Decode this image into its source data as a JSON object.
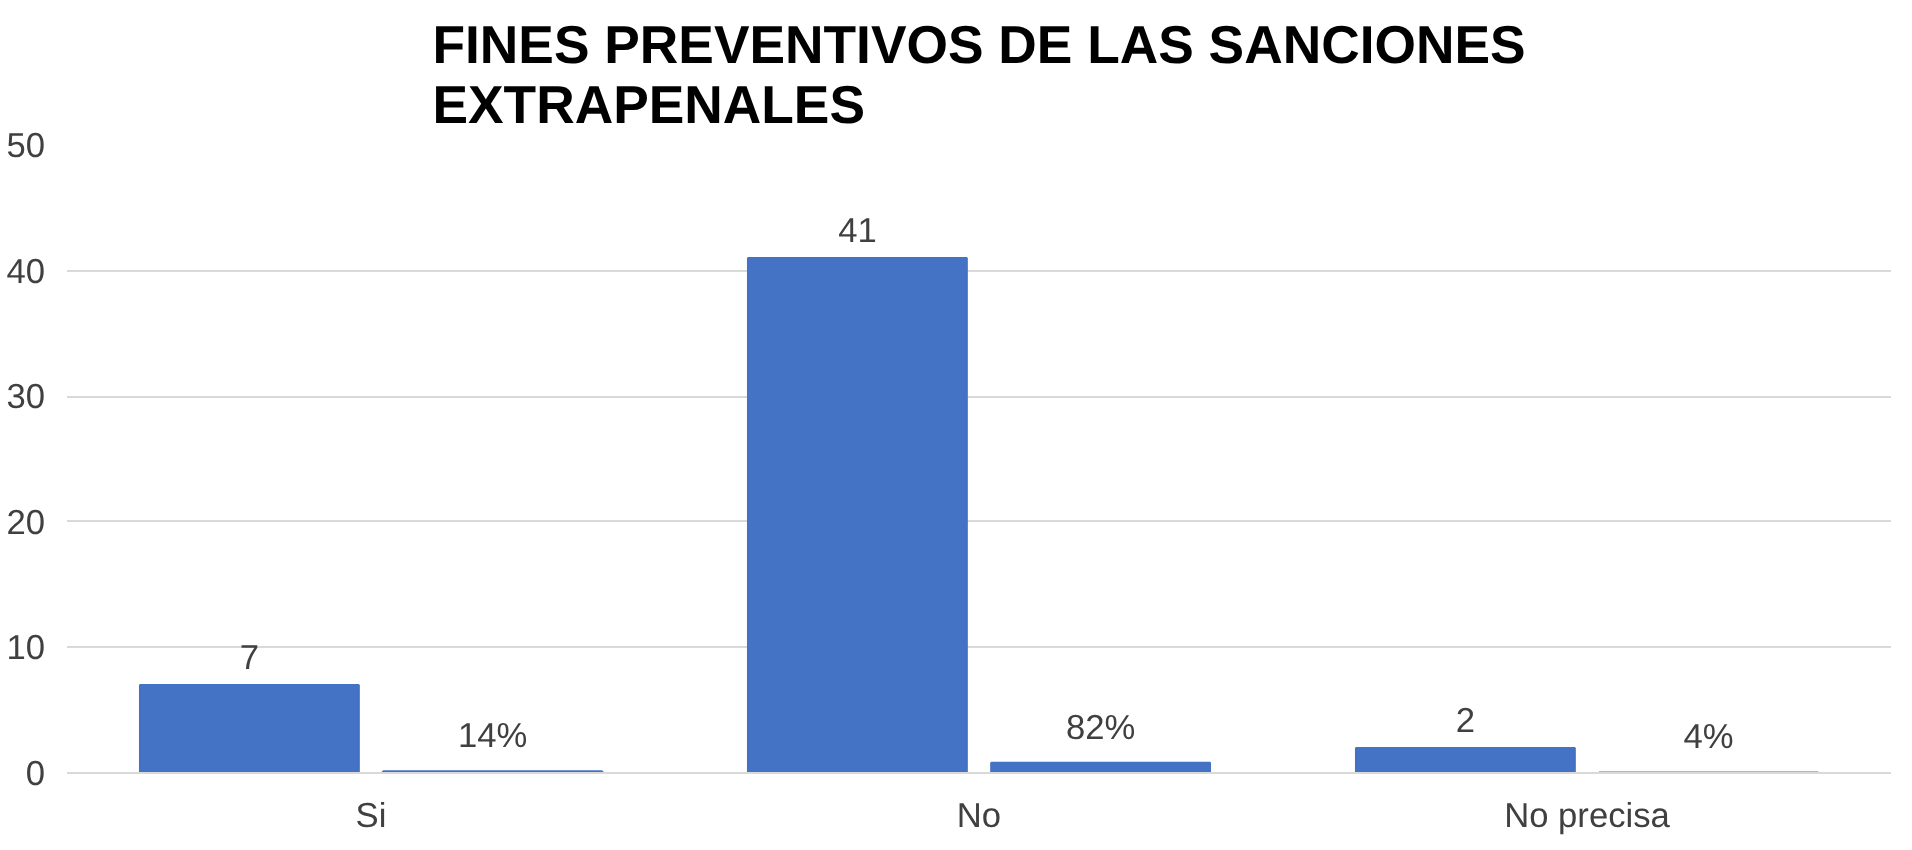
{
  "chart_data": {
    "type": "bar",
    "title": "FINES PREVENTIVOS DE LAS SANCIONES EXTRAPENALES",
    "categories": [
      "Si",
      "No",
      "No precisa"
    ],
    "series": [
      {
        "color": "#4472c4",
        "values": [
          7,
          41,
          2
        ],
        "value_labels": [
          "7",
          "41",
          "2"
        ]
      },
      {
        "color": "#4472c4",
        "values": [
          0.14,
          0.82,
          0.04
        ],
        "value_labels": [
          "14%",
          "82%",
          "4%"
        ]
      }
    ],
    "ylim": [
      0,
      50
    ],
    "yticks": [
      0,
      10,
      20,
      30,
      40,
      50
    ],
    "grid": "y"
  }
}
